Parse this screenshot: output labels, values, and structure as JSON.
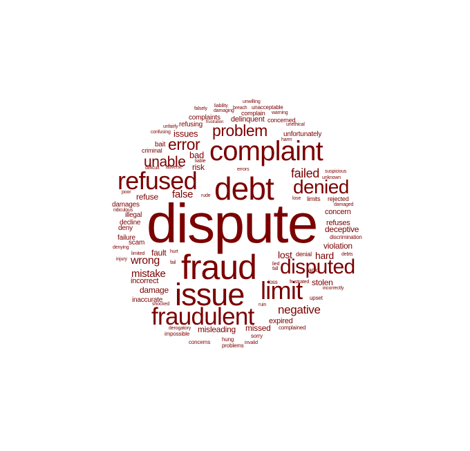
{
  "word_color": "#7b0000",
  "words": [
    {
      "text": "dispute"
    },
    {
      "text": "fraud"
    },
    {
      "text": "debt"
    },
    {
      "text": "complaint"
    },
    {
      "text": "issue"
    },
    {
      "text": "limit"
    },
    {
      "text": "refused"
    },
    {
      "text": "fraudulent"
    },
    {
      "text": "disputed"
    },
    {
      "text": "denied"
    },
    {
      "text": "problem"
    },
    {
      "text": "error"
    },
    {
      "text": "unable"
    },
    {
      "text": "failed"
    },
    {
      "text": "negative"
    },
    {
      "text": "wrong"
    },
    {
      "text": "mistake"
    },
    {
      "text": "false"
    },
    {
      "text": "lost"
    },
    {
      "text": "hard"
    },
    {
      "text": "issues"
    },
    {
      "text": "bad"
    },
    {
      "text": "refuse"
    },
    {
      "text": "risk"
    },
    {
      "text": "missed"
    },
    {
      "text": "misleading"
    },
    {
      "text": "fault"
    },
    {
      "text": "damage"
    },
    {
      "text": "incorrect"
    },
    {
      "text": "deceptive"
    },
    {
      "text": "violation"
    },
    {
      "text": "stolen"
    },
    {
      "text": "concern"
    },
    {
      "text": "refuses"
    },
    {
      "text": "expired"
    },
    {
      "text": "delinquent"
    },
    {
      "text": "complaints"
    },
    {
      "text": "unfortunately"
    },
    {
      "text": "damages"
    },
    {
      "text": "illegal"
    },
    {
      "text": "decline"
    },
    {
      "text": "deny"
    },
    {
      "text": "failure"
    },
    {
      "text": "scam"
    },
    {
      "text": "inaccurate"
    },
    {
      "text": "refusing"
    },
    {
      "text": "bait"
    },
    {
      "text": "criminal"
    },
    {
      "text": "concerned"
    },
    {
      "text": "complain"
    },
    {
      "text": "lack"
    },
    {
      "text": "rejected"
    },
    {
      "text": "limits"
    },
    {
      "text": "denial"
    },
    {
      "text": "unacceptable"
    },
    {
      "text": "discrimination"
    },
    {
      "text": "upset"
    },
    {
      "text": "complained"
    },
    {
      "text": "sorry"
    },
    {
      "text": "impossible"
    },
    {
      "text": "derogatory"
    },
    {
      "text": "concerns"
    },
    {
      "text": "hung"
    },
    {
      "text": "problems"
    },
    {
      "text": "invalid"
    },
    {
      "text": "loss"
    },
    {
      "text": "frustrated"
    },
    {
      "text": "incorrectly"
    },
    {
      "text": "ruin"
    },
    {
      "text": "lied"
    },
    {
      "text": "fall"
    },
    {
      "text": "debts"
    },
    {
      "text": "damaged"
    },
    {
      "text": "suspicious"
    },
    {
      "text": "unknown"
    },
    {
      "text": "lose"
    },
    {
      "text": "errors"
    },
    {
      "text": "rude"
    },
    {
      "text": "poor"
    },
    {
      "text": "ridiculous"
    },
    {
      "text": "limited"
    },
    {
      "text": "hurt"
    },
    {
      "text": "fail"
    },
    {
      "text": "denying"
    },
    {
      "text": "injury"
    },
    {
      "text": "shocked"
    },
    {
      "text": "difficult"
    },
    {
      "text": "adverse"
    },
    {
      "text": "liable"
    },
    {
      "text": "unfairly"
    },
    {
      "text": "confusing"
    },
    {
      "text": "frustration"
    },
    {
      "text": "damaging"
    },
    {
      "text": "breach"
    },
    {
      "text": "warning"
    },
    {
      "text": "unethical"
    },
    {
      "text": "harm"
    },
    {
      "text": "falsely"
    },
    {
      "text": "liability"
    },
    {
      "text": "unwilling"
    }
  ]
}
